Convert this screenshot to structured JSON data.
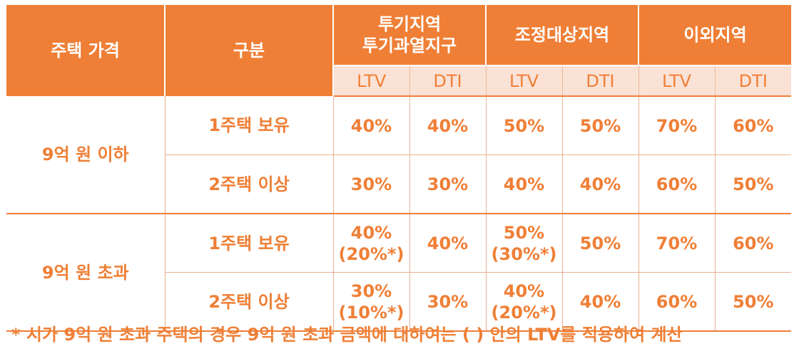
{
  "header": {
    "price_label": "주택 가격",
    "type_label": "구분",
    "regions": [
      {
        "lines": [
          "투기지역",
          "투기과열지구"
        ]
      },
      {
        "lines": [
          "조정대상지역"
        ]
      },
      {
        "lines": [
          "이외지역"
        ]
      }
    ],
    "sub_labels": [
      "LTV",
      "DTI",
      "LTV",
      "DTI",
      "LTV",
      "DTI"
    ]
  },
  "groups": [
    {
      "price": "9억 원 이하",
      "rows": [
        {
          "type": "1주택 보유",
          "values": [
            [
              "40%"
            ],
            [
              "40%"
            ],
            [
              "50%"
            ],
            [
              "50%"
            ],
            [
              "70%"
            ],
            [
              "60%"
            ]
          ]
        },
        {
          "type": "2주택 이상",
          "values": [
            [
              "30%"
            ],
            [
              "30%"
            ],
            [
              "40%"
            ],
            [
              "40%"
            ],
            [
              "60%"
            ],
            [
              "50%"
            ]
          ]
        }
      ]
    },
    {
      "price": "9억 원 초과",
      "rows": [
        {
          "type": "1주택 보유",
          "values": [
            [
              "40%",
              "(20%*)"
            ],
            [
              "40%"
            ],
            [
              "50%",
              "(30%*)"
            ],
            [
              "50%"
            ],
            [
              "70%"
            ],
            [
              "60%"
            ]
          ]
        },
        {
          "type": "2주택 이상",
          "values": [
            [
              "30%",
              "(10%*)"
            ],
            [
              "30%"
            ],
            [
              "40%",
              "(20%*)"
            ],
            [
              "40%"
            ],
            [
              "60%"
            ],
            [
              "50%"
            ]
          ]
        }
      ]
    }
  ],
  "footnote": "* 시가 9억 원 초과 주택의 경우 9억 원 초과 금액에 대하여는 (   ) 안의 LTV를 적용하여 계산",
  "colors": {
    "accent": "#ef7f36",
    "sub_header_bg": "#fbe2d6",
    "header_text": "#ffffff"
  }
}
